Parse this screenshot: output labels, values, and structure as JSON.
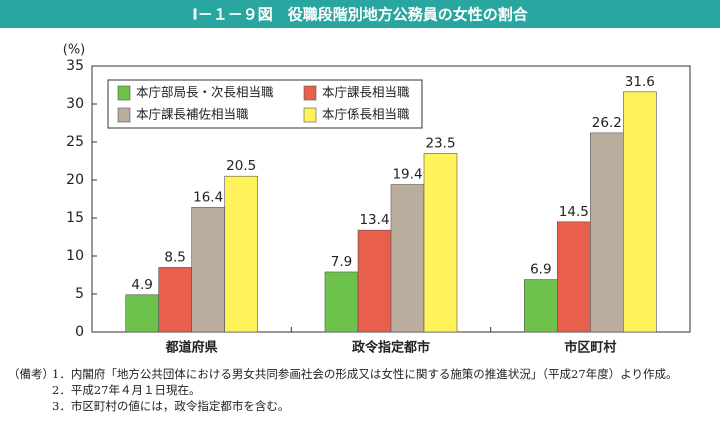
{
  "chart_data": {
    "type": "bar",
    "title": "Ⅰ－１－９図　役職段階別地方公務員の女性の割合",
    "y_label": "(%)",
    "categories": [
      "都道府県",
      "政令指定都市",
      "市区町村"
    ],
    "series": [
      {
        "name": "本庁部局長・次長相当職",
        "color": "#6cc24a",
        "values": [
          4.9,
          7.9,
          6.9
        ]
      },
      {
        "name": "本庁課長相当職",
        "color": "#e8604c",
        "values": [
          8.5,
          13.4,
          14.5
        ]
      },
      {
        "name": "本庁課長補佐相当職",
        "color": "#bcae9f",
        "values": [
          16.4,
          19.4,
          26.2
        ]
      },
      {
        "name": "本庁係長相当職",
        "color": "#fff25a",
        "values": [
          20.5,
          23.5,
          31.6
        ]
      }
    ],
    "ylim": [
      0,
      35
    ],
    "yticks": [
      0,
      5,
      10,
      15,
      20,
      25,
      30,
      35
    ],
    "grid": false,
    "legend": "upper left",
    "notes_heading": "（備考）",
    "notes": [
      "1．内閣府「地方公共団体における男女共同参画社会の形成又は女性に関する施策の推進状況」（平成27年度）より作成。",
      "2．平成27年４月１日現在。",
      "3．市区町村の値には，政令指定都市を含む。"
    ]
  }
}
